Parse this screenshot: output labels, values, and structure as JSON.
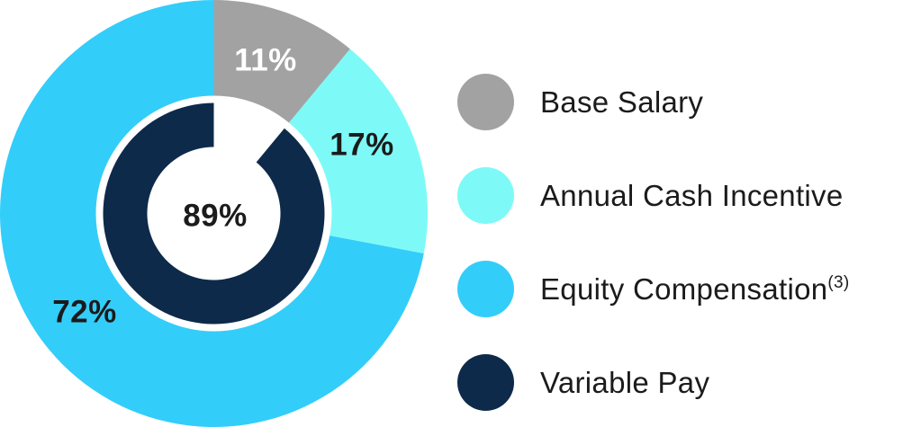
{
  "chart_data": {
    "type": "pie",
    "subtype": "donut-with-inner-ring",
    "direction": "clockwise",
    "start_angle_deg": 0,
    "legend_position": "right",
    "grid": false,
    "slices": [
      {
        "label": "Base Salary",
        "value": 11,
        "pct_label": "11%",
        "color": "#a3a2a2",
        "pct_label_color": "#ffffff"
      },
      {
        "label": "Annual Cash Incentive",
        "value": 17,
        "pct_label": "17%",
        "color": "#7dfaf7",
        "pct_label_color": "#1b1b1b"
      },
      {
        "label": "Equity Compensation",
        "value": 72,
        "pct_label": "72%",
        "color": "#33cdfa",
        "pct_label_color": "#1b1b1b"
      }
    ],
    "inner_ring": {
      "label": "Variable Pay",
      "value": 89,
      "pct_label": "89%",
      "color": "#0e2a4a",
      "pct_label_color": "#1b1b1b",
      "gap_value": 11,
      "gap_aligned_with": "Base Salary"
    }
  },
  "legend": {
    "items": [
      {
        "label": "Base Salary",
        "sup": "",
        "color": "#a3a2a2"
      },
      {
        "label": "Annual Cash Incentive",
        "sup": "",
        "color": "#7dfaf7"
      },
      {
        "label": "Equity Compensation",
        "sup": "(3)",
        "color": "#33cdfa"
      },
      {
        "label": "Variable Pay",
        "sup": "",
        "color": "#0e2a4a"
      }
    ]
  }
}
